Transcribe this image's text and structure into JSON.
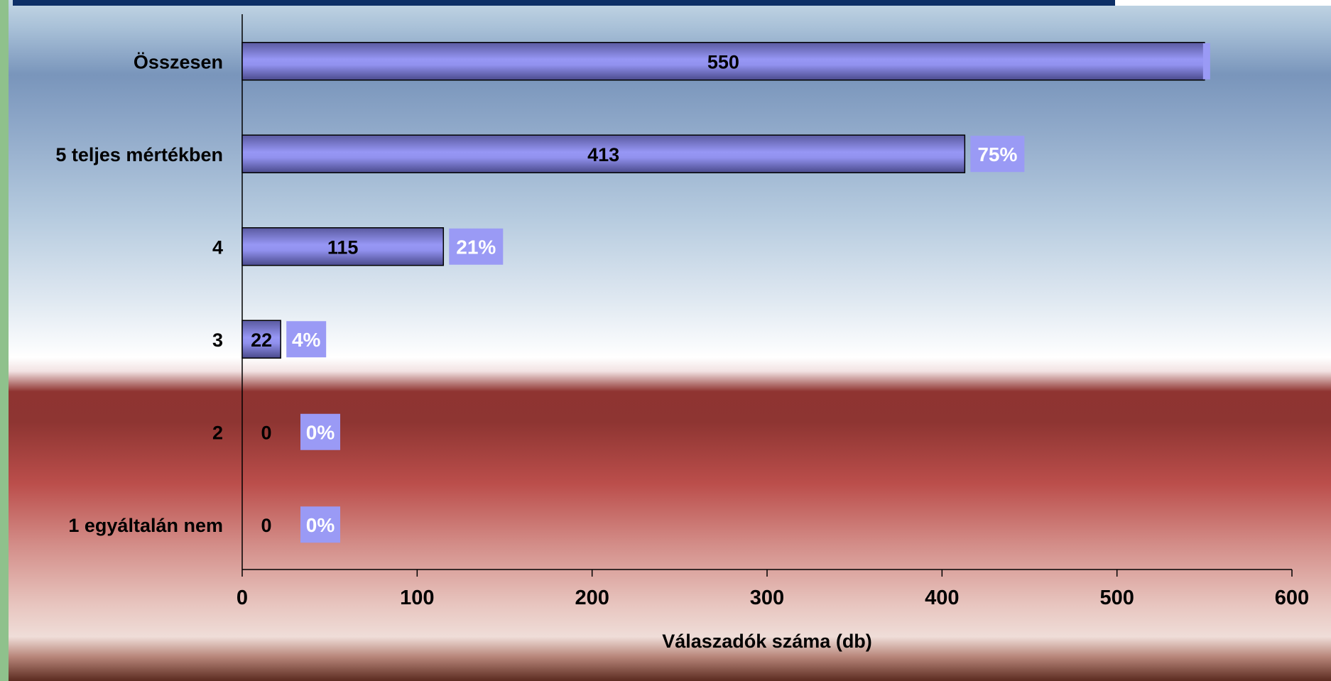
{
  "chart_data": {
    "type": "bar",
    "orientation": "horizontal",
    "categories": [
      "Összesen",
      "5 teljes mértékben",
      "4",
      "3",
      "2",
      "1 egyáltalán nem"
    ],
    "values": [
      550,
      413,
      115,
      22,
      0,
      0
    ],
    "percent_labels": [
      "",
      "75%",
      "21%",
      "4%",
      "0%",
      "0%"
    ],
    "xlabel": "Válaszadók száma (db)",
    "xlim": [
      0,
      600
    ],
    "xticks": [
      0,
      100,
      200,
      300,
      400,
      500,
      600
    ],
    "grid": false,
    "legend": "none",
    "colors": {
      "bar": "#8f8fee",
      "bar_dark": "#4a4a8c",
      "percent_box": "#9a9af5",
      "top_band": "#0d2f66",
      "left_border": "#8fc18c"
    }
  }
}
